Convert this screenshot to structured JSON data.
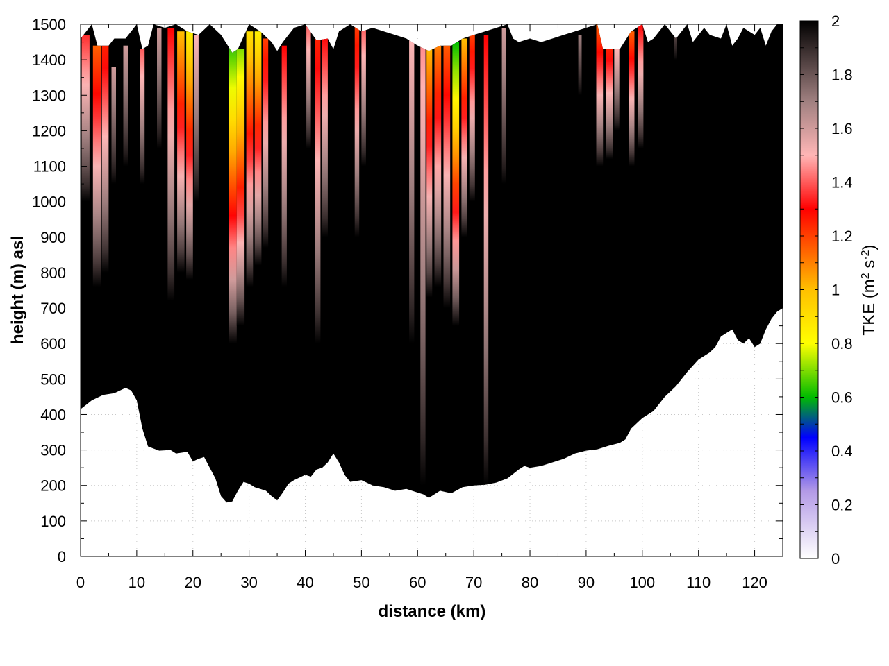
{
  "chart_data": {
    "type": "heatmap",
    "title": "",
    "xlabel": "distance (km)",
    "ylabel": "height (m) asl",
    "xlim": [
      0,
      125
    ],
    "ylim": [
      0,
      1500
    ],
    "x_ticks": [
      0,
      10,
      20,
      30,
      40,
      50,
      60,
      70,
      80,
      90,
      100,
      110,
      120
    ],
    "y_ticks": [
      0,
      100,
      200,
      300,
      400,
      500,
      600,
      700,
      800,
      900,
      1000,
      1100,
      1200,
      1300,
      1400,
      1500
    ],
    "grid": "dotted",
    "colorbar": {
      "label_main": "TKE (m",
      "sup1": "2",
      "label_mid": " s",
      "sup2": "-2",
      "label_end": ")",
      "range": [
        0,
        2
      ],
      "ticks": [
        "0",
        "0.2",
        "0.4",
        "0.6",
        "0.8",
        "1",
        "1.2",
        "1.4",
        "1.6",
        "1.8",
        "2"
      ],
      "colors": [
        {
          "v": 0.0,
          "c": "#ffffff"
        },
        {
          "v": 0.25,
          "c": "#b39ae6"
        },
        {
          "v": 0.45,
          "c": "#0000ff"
        },
        {
          "v": 0.6,
          "c": "#00bb00"
        },
        {
          "v": 0.8,
          "c": "#ffff00"
        },
        {
          "v": 1.0,
          "c": "#ffc000"
        },
        {
          "v": 1.15,
          "c": "#ff6000"
        },
        {
          "v": 1.3,
          "c": "#ff0000"
        },
        {
          "v": 1.5,
          "c": "#ffb6b6"
        },
        {
          "v": 1.7,
          "c": "#a08080"
        },
        {
          "v": 2.0,
          "c": "#000000"
        }
      ]
    },
    "background_field_value": 2.0,
    "terrain_bottom": [
      [
        0,
        415
      ],
      [
        2,
        440
      ],
      [
        4,
        455
      ],
      [
        6,
        460
      ],
      [
        8,
        475
      ],
      [
        9,
        468
      ],
      [
        10,
        440
      ],
      [
        11,
        360
      ],
      [
        12,
        310
      ],
      [
        14,
        298
      ],
      [
        16,
        300
      ],
      [
        17,
        290
      ],
      [
        19,
        295
      ],
      [
        20,
        268
      ],
      [
        21,
        275
      ],
      [
        22,
        280
      ],
      [
        23,
        250
      ],
      [
        24,
        220
      ],
      [
        25,
        170
      ],
      [
        26,
        152
      ],
      [
        27,
        155
      ],
      [
        28,
        185
      ],
      [
        29,
        210
      ],
      [
        30,
        205
      ],
      [
        31,
        195
      ],
      [
        32,
        190
      ],
      [
        33,
        185
      ],
      [
        34,
        170
      ],
      [
        35,
        158
      ],
      [
        36,
        180
      ],
      [
        37,
        205
      ],
      [
        38,
        215
      ],
      [
        40,
        230
      ],
      [
        41,
        225
      ],
      [
        42,
        245
      ],
      [
        43,
        250
      ],
      [
        44,
        265
      ],
      [
        45,
        290
      ],
      [
        46,
        265
      ],
      [
        47,
        230
      ],
      [
        48,
        210
      ],
      [
        50,
        215
      ],
      [
        52,
        200
      ],
      [
        54,
        195
      ],
      [
        56,
        185
      ],
      [
        58,
        190
      ],
      [
        60,
        180
      ],
      [
        61,
        175
      ],
      [
        62,
        165
      ],
      [
        64,
        185
      ],
      [
        66,
        178
      ],
      [
        68,
        195
      ],
      [
        70,
        200
      ],
      [
        72,
        202
      ],
      [
        74,
        208
      ],
      [
        76,
        220
      ],
      [
        78,
        245
      ],
      [
        79,
        255
      ],
      [
        80,
        250
      ],
      [
        82,
        255
      ],
      [
        84,
        265
      ],
      [
        86,
        275
      ],
      [
        88,
        290
      ],
      [
        90,
        298
      ],
      [
        92,
        302
      ],
      [
        94,
        312
      ],
      [
        96,
        320
      ],
      [
        97,
        330
      ],
      [
        98,
        360
      ],
      [
        100,
        390
      ],
      [
        102,
        410
      ],
      [
        103,
        430
      ],
      [
        104,
        450
      ],
      [
        106,
        480
      ],
      [
        108,
        520
      ],
      [
        110,
        555
      ],
      [
        112,
        575
      ],
      [
        113,
        590
      ],
      [
        114,
        620
      ],
      [
        115,
        630
      ],
      [
        116,
        640
      ],
      [
        117,
        610
      ],
      [
        118,
        600
      ],
      [
        119,
        615
      ],
      [
        120,
        590
      ],
      [
        121,
        600
      ],
      [
        122,
        640
      ],
      [
        123,
        670
      ],
      [
        124,
        690
      ],
      [
        125,
        700
      ]
    ],
    "terrain_top": [
      [
        0,
        1460
      ],
      [
        2,
        1500
      ],
      [
        3,
        1440
      ],
      [
        5,
        1440
      ],
      [
        6,
        1460
      ],
      [
        8,
        1460
      ],
      [
        10,
        1500
      ],
      [
        11,
        1430
      ],
      [
        12,
        1440
      ],
      [
        13,
        1500
      ],
      [
        15,
        1490
      ],
      [
        17,
        1500
      ],
      [
        19,
        1480
      ],
      [
        21,
        1470
      ],
      [
        23,
        1500
      ],
      [
        25,
        1470
      ],
      [
        27,
        1420
      ],
      [
        28,
        1430
      ],
      [
        30,
        1500
      ],
      [
        32,
        1480
      ],
      [
        34,
        1450
      ],
      [
        35,
        1425
      ],
      [
        36,
        1450
      ],
      [
        38,
        1490
      ],
      [
        40,
        1500
      ],
      [
        42,
        1455
      ],
      [
        44,
        1460
      ],
      [
        45,
        1430
      ],
      [
        46,
        1480
      ],
      [
        48,
        1500
      ],
      [
        50,
        1480
      ],
      [
        52,
        1490
      ],
      [
        54,
        1480
      ],
      [
        56,
        1470
      ],
      [
        58,
        1460
      ],
      [
        60,
        1440
      ],
      [
        62,
        1425
      ],
      [
        64,
        1440
      ],
      [
        66,
        1440
      ],
      [
        68,
        1460
      ],
      [
        70,
        1470
      ],
      [
        72,
        1480
      ],
      [
        74,
        1490
      ],
      [
        76,
        1500
      ],
      [
        77,
        1460
      ],
      [
        78,
        1450
      ],
      [
        80,
        1460
      ],
      [
        82,
        1450
      ],
      [
        84,
        1460
      ],
      [
        86,
        1470
      ],
      [
        88,
        1480
      ],
      [
        90,
        1490
      ],
      [
        92,
        1500
      ],
      [
        93,
        1430
      ],
      [
        96,
        1430
      ],
      [
        98,
        1480
      ],
      [
        100,
        1500
      ],
      [
        101,
        1450
      ],
      [
        102,
        1460
      ],
      [
        103,
        1480
      ],
      [
        104,
        1500
      ],
      [
        106,
        1460
      ],
      [
        108,
        1500
      ],
      [
        109,
        1450
      ],
      [
        110,
        1470
      ],
      [
        111,
        1490
      ],
      [
        112,
        1470
      ],
      [
        114,
        1460
      ],
      [
        115,
        1500
      ],
      [
        116,
        1440
      ],
      [
        117,
        1460
      ],
      [
        118,
        1490
      ],
      [
        119,
        1480
      ],
      [
        120,
        1470
      ],
      [
        121,
        1490
      ],
      [
        122,
        1440
      ],
      [
        123,
        1480
      ],
      [
        124,
        1500
      ],
      [
        125,
        1500
      ]
    ],
    "plumes": [
      {
        "x": 0.2,
        "w": 1.4,
        "bottom": 1000,
        "top": 1470,
        "min": 1.35
      },
      {
        "x": 2.2,
        "w": 1.4,
        "bottom": 760,
        "top": 1440,
        "min": 1.15
      },
      {
        "x": 3.8,
        "w": 1.2,
        "bottom": 800,
        "top": 1440,
        "min": 1.25
      },
      {
        "x": 5.5,
        "w": 0.8,
        "bottom": 1050,
        "top": 1380,
        "min": 1.6
      },
      {
        "x": 7.6,
        "w": 0.8,
        "bottom": 1100,
        "top": 1440,
        "min": 1.6
      },
      {
        "x": 10.6,
        "w": 0.8,
        "bottom": 1050,
        "top": 1430,
        "min": 1.4
      },
      {
        "x": 13.6,
        "w": 0.8,
        "bottom": 1150,
        "top": 1490,
        "min": 1.6
      },
      {
        "x": 15.5,
        "w": 1.2,
        "bottom": 720,
        "top": 1490,
        "min": 1.3
      },
      {
        "x": 17.2,
        "w": 1.3,
        "bottom": 800,
        "top": 1480,
        "min": 1.0
      },
      {
        "x": 18.8,
        "w": 1.2,
        "bottom": 780,
        "top": 1480,
        "min": 0.85
      },
      {
        "x": 20.2,
        "w": 0.8,
        "bottom": 1000,
        "top": 1470,
        "min": 1.5
      },
      {
        "x": 26.4,
        "w": 1.4,
        "bottom": 600,
        "top": 1500,
        "min": 0.55
      },
      {
        "x": 27.8,
        "w": 1.4,
        "bottom": 650,
        "top": 1430,
        "min": 0.7
      },
      {
        "x": 29.5,
        "w": 1.2,
        "bottom": 760,
        "top": 1480,
        "min": 0.9
      },
      {
        "x": 31.0,
        "w": 1.2,
        "bottom": 820,
        "top": 1480,
        "min": 0.85
      },
      {
        "x": 32.4,
        "w": 1.0,
        "bottom": 870,
        "top": 1460,
        "min": 1.2
      },
      {
        "x": 35.8,
        "w": 0.9,
        "bottom": 760,
        "top": 1440,
        "min": 1.3
      },
      {
        "x": 40.2,
        "w": 0.8,
        "bottom": 1150,
        "top": 1500,
        "min": 1.4
      },
      {
        "x": 41.7,
        "w": 1.0,
        "bottom": 600,
        "top": 1460,
        "min": 1.25
      },
      {
        "x": 43.0,
        "w": 1.0,
        "bottom": 900,
        "top": 1470,
        "min": 1.3
      },
      {
        "x": 48.8,
        "w": 0.8,
        "bottom": 900,
        "top": 1500,
        "min": 1.2
      },
      {
        "x": 50.0,
        "w": 0.8,
        "bottom": 1100,
        "top": 1490,
        "min": 1.4
      },
      {
        "x": 58.5,
        "w": 0.9,
        "bottom": 600,
        "top": 1460,
        "min": 1.5
      },
      {
        "x": 60.5,
        "w": 0.9,
        "bottom": 200,
        "top": 1450,
        "min": 1.45
      },
      {
        "x": 61.6,
        "w": 1.0,
        "bottom": 730,
        "top": 1440,
        "min": 1.0
      },
      {
        "x": 63.0,
        "w": 1.2,
        "bottom": 760,
        "top": 1440,
        "min": 1.1
      },
      {
        "x": 64.6,
        "w": 1.2,
        "bottom": 700,
        "top": 1450,
        "min": 1.15
      },
      {
        "x": 66.2,
        "w": 1.2,
        "bottom": 650,
        "top": 1450,
        "min": 0.6
      },
      {
        "x": 67.8,
        "w": 1.0,
        "bottom": 900,
        "top": 1460,
        "min": 1.0
      },
      {
        "x": 69.2,
        "w": 1.0,
        "bottom": 1000,
        "top": 1470,
        "min": 1.2
      },
      {
        "x": 71.8,
        "w": 0.8,
        "bottom": 200,
        "top": 1470,
        "min": 1.3
      },
      {
        "x": 75.0,
        "w": 0.7,
        "bottom": 1050,
        "top": 1490,
        "min": 1.6
      },
      {
        "x": 88.6,
        "w": 0.6,
        "bottom": 1300,
        "top": 1470,
        "min": 1.7
      },
      {
        "x": 91.8,
        "w": 1.2,
        "bottom": 1100,
        "top": 1500,
        "min": 1.15
      },
      {
        "x": 93.6,
        "w": 1.2,
        "bottom": 1120,
        "top": 1430,
        "min": 1.25
      },
      {
        "x": 95.0,
        "w": 0.9,
        "bottom": 1200,
        "top": 1430,
        "min": 1.5
      },
      {
        "x": 97.6,
        "w": 1.0,
        "bottom": 1100,
        "top": 1480,
        "min": 1.15
      },
      {
        "x": 99.2,
        "w": 1.0,
        "bottom": 1150,
        "top": 1500,
        "min": 1.3
      },
      {
        "x": 105.6,
        "w": 0.6,
        "bottom": 1400,
        "top": 1490,
        "min": 1.8
      }
    ]
  }
}
